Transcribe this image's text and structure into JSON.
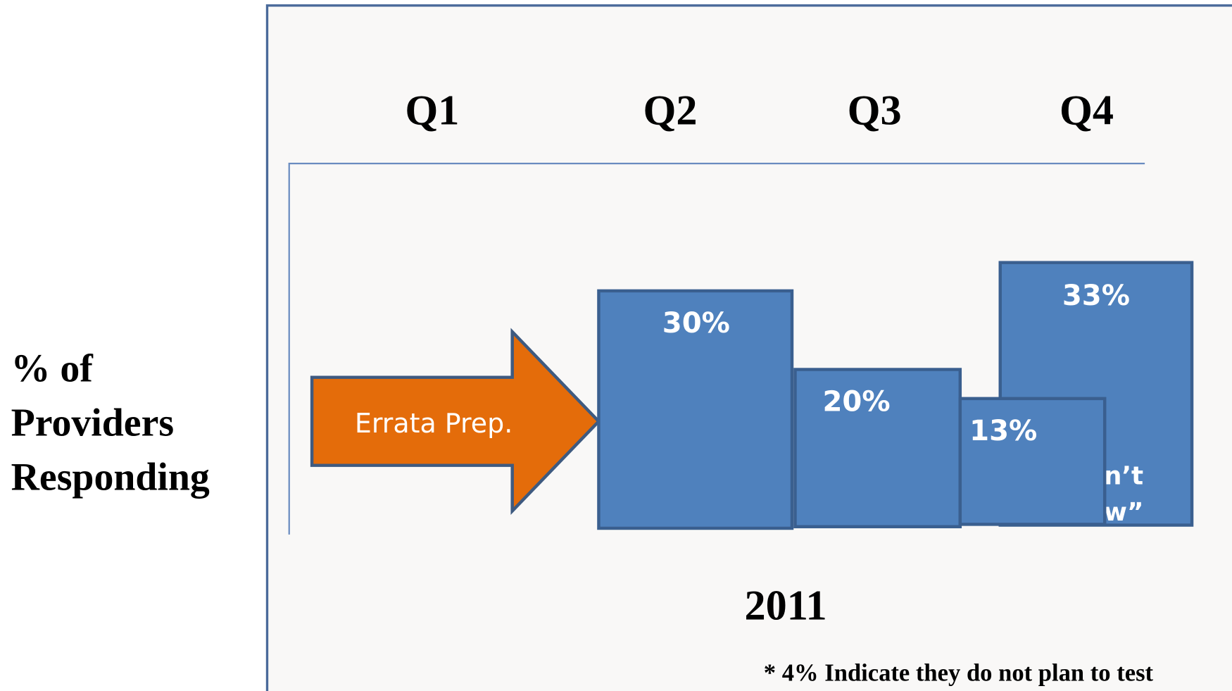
{
  "y_axis_label": [
    "% of",
    "Providers",
    "Responding"
  ],
  "quarters": [
    "Q1",
    "Q2",
    "Q3",
    "Q4"
  ],
  "arrow": {
    "label": "Errata Prep."
  },
  "boxes": [
    {
      "label": "30%"
    },
    {
      "label": "20%"
    },
    {
      "label": "13%"
    },
    {
      "label": "33%",
      "hidden_text": [
        "n’t",
        "w”"
      ]
    }
  ],
  "year": "2011",
  "footnote": "* 4% Indicate they do not plan to test"
}
